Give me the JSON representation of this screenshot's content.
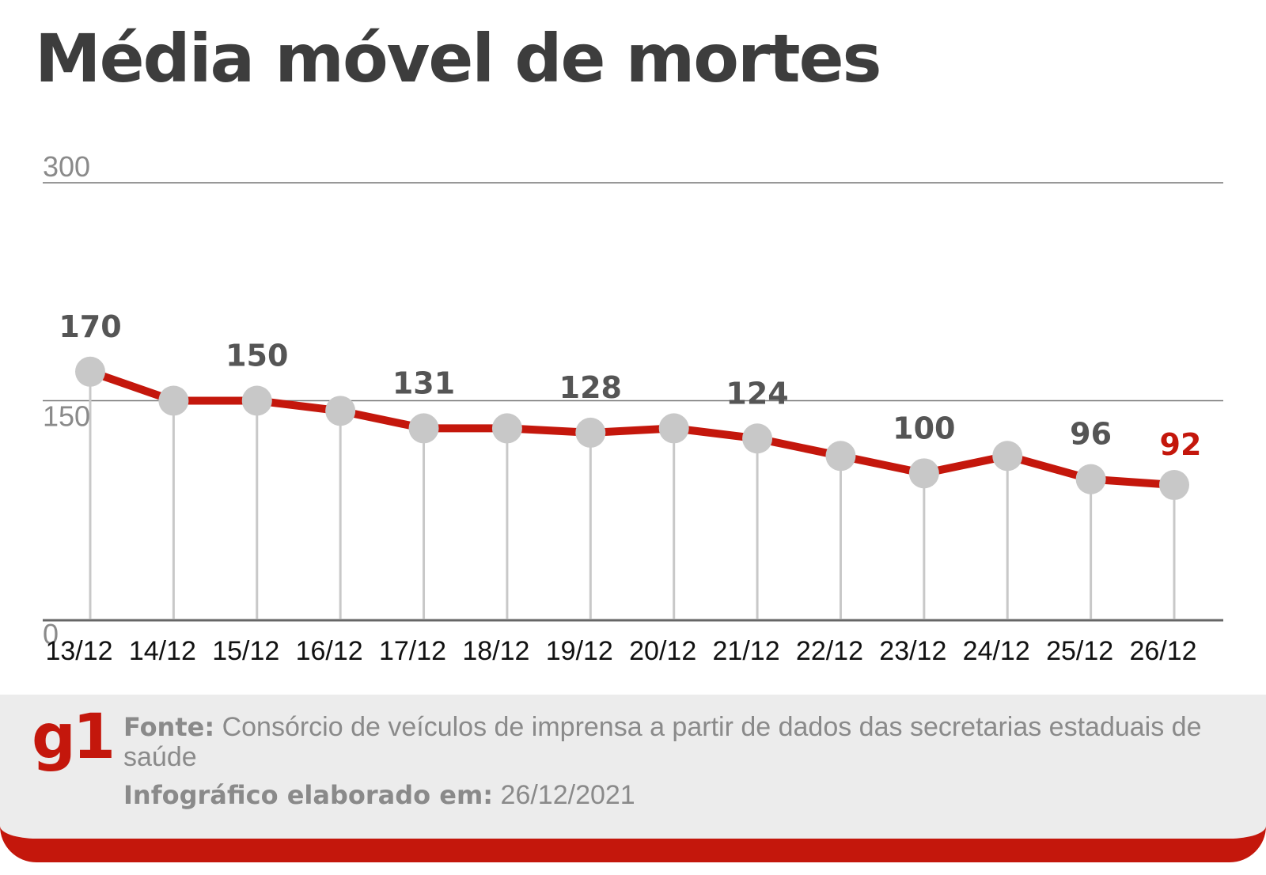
{
  "title": "Média móvel de mortes",
  "chart_data": {
    "type": "line",
    "title": "Média móvel de mortes",
    "categories": [
      "13/12",
      "14/12",
      "15/12",
      "16/12",
      "17/12",
      "18/12",
      "19/12",
      "20/12",
      "21/12",
      "22/12",
      "23/12",
      "24/12",
      "25/12",
      "26/12"
    ],
    "series": [
      {
        "values": [
          170,
          150,
          150,
          143,
          131,
          131,
          128,
          131,
          124,
          112,
          100,
          112,
          96,
          92
        ],
        "color": "#c4170c"
      }
    ],
    "point_labels": [
      "170",
      "",
      "150",
      "",
      "131",
      "",
      "128",
      "",
      "124",
      "",
      "100",
      "",
      "96",
      "92"
    ],
    "ylim": [
      0,
      300
    ],
    "yticks": [
      0,
      150,
      300
    ],
    "grid": true,
    "marker_color": "#c8c8c8",
    "highlight_color": "#c4170c"
  },
  "footer": {
    "logo": "g1",
    "source_label": "Fonte:",
    "source_text": " Consórcio de veículos de imprensa a partir de dados das secretarias estaduais de saúde",
    "date_label": "Infográfico elaborado em:",
    "date_text": " 26/12/2021"
  }
}
